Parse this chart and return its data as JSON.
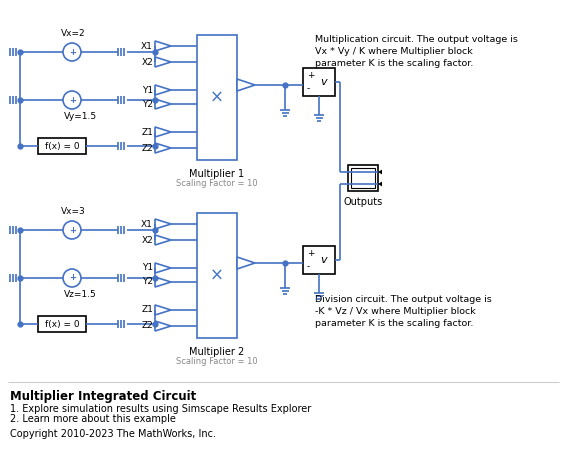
{
  "title": "Multiplier Integrated Circuit",
  "subtitle_lines": [
    "1. Explore simulation results using Simscape Results Explorer",
    "2. Learn more about this example"
  ],
  "copyright": "Copyright 2010-2023 The MathWorks, Inc.",
  "annotation_top": "Multiplication circuit. The output voltage is\nVx * Vy / K where Multiplier block\nparameter K is the scaling factor.",
  "annotation_bottom": "Division circuit. The output voltage is\n-K * Vz / Vx where Multiplier block\nparameter K is the scaling factor.",
  "blue": "#4472C4",
  "black": "#000000",
  "gray": "#888888",
  "bg": "#FFFFFF",
  "line_width": 1.2
}
